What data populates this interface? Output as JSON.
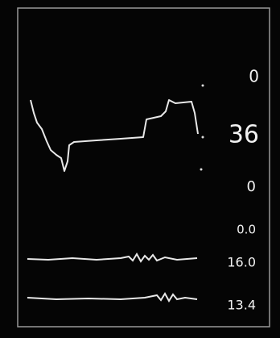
{
  "readouts": [
    "0",
    "36",
    "0",
    "0.0",
    "16.0",
    "13.4"
  ]
}
